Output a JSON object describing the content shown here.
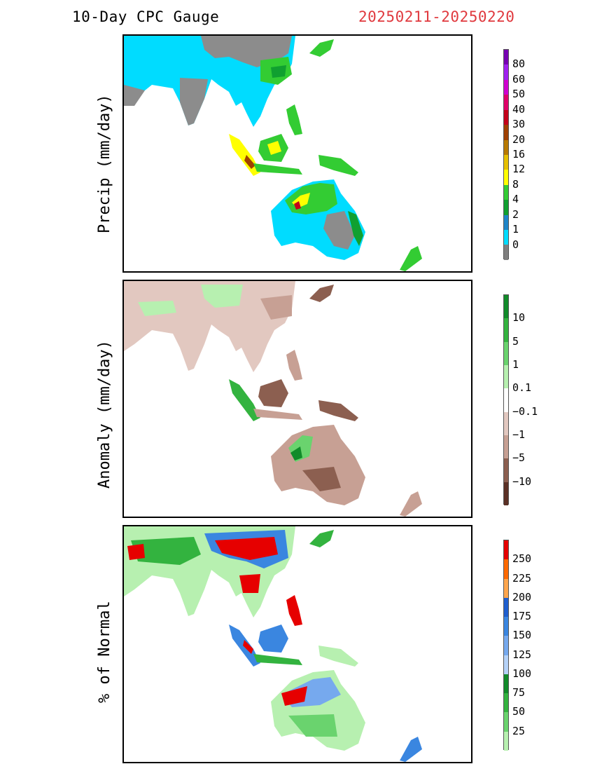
{
  "header": {
    "title": "10-Day CPC Gauge",
    "date_range": "20250211-20250220"
  },
  "colors": {
    "date_range": "#e0393e",
    "land_gray": "#8c8c8c",
    "precip_zero": "#00dcff"
  },
  "panels": [
    {
      "ylabel": "Precip (mm/day)",
      "colorbar": {
        "labels": [
          "80",
          "60",
          "50",
          "40",
          "30",
          "20",
          "16",
          "12",
          "8",
          "4",
          "2",
          "1",
          "0"
        ],
        "colors": [
          "#7700b3",
          "#a020f0",
          "#d000d0",
          "#e0006a",
          "#c4001a",
          "#a04000",
          "#b87a00",
          "#e6c000",
          "#ffff00",
          "#33cc33",
          "#10a030",
          "#1f86c8",
          "#00dcff",
          "#7f7f7f"
        ]
      }
    },
    {
      "ylabel": "Anomaly (mm/day)",
      "colorbar": {
        "labels": [
          "10",
          "5",
          "1",
          "0.1",
          "−0.1",
          "−1",
          "−5",
          "−10"
        ],
        "colors": [
          "#118b2a",
          "#33b33f",
          "#6ad36e",
          "#b7f0b0",
          "#ffffff",
          "#e2c8c0",
          "#c7a094",
          "#8c5f50",
          "#5b3025"
        ]
      }
    },
    {
      "ylabel": "% of Normal",
      "colorbar": {
        "labels": [
          "250",
          "225",
          "200",
          "175",
          "150",
          "125",
          "100",
          "75",
          "50",
          "25"
        ],
        "colors": [
          "#e60000",
          "#ff6a00",
          "#ffa64d",
          "#1f5fcf",
          "#3a86e0",
          "#76a9ee",
          "#b5d2f8",
          "#118b2a",
          "#33b33f",
          "#6ad36e",
          "#b7f0b0"
        ]
      }
    }
  ]
}
